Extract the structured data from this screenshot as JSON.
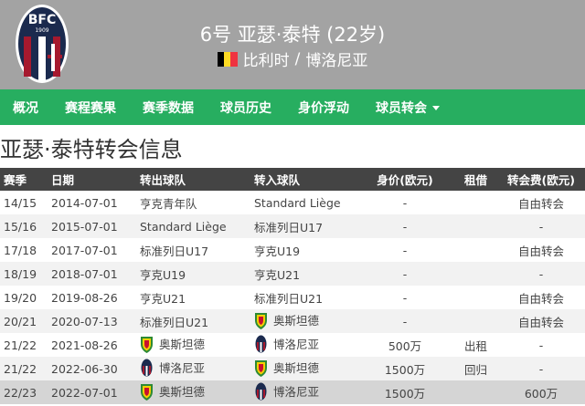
{
  "header": {
    "title": "6号 亚瑟·泰特 (22岁)",
    "nationality": "比利时",
    "club": "博洛尼亚",
    "separator": " / ",
    "logo_text": "BFC",
    "logo_year": "1909"
  },
  "nav": {
    "items": [
      "概况",
      "赛程赛果",
      "赛季数据",
      "球员历史",
      "身价浮动",
      "球员转会"
    ]
  },
  "page_title": "亚瑟·泰特转会信息",
  "table": {
    "headers": [
      "赛季",
      "日期",
      "转出球队",
      "转入球队",
      "身价(欧元)",
      "租借",
      "转会费(欧元)"
    ],
    "rows": [
      {
        "season": "14/15",
        "date": "2014-07-01",
        "from": "亨克青年队",
        "to": "Standard Liège",
        "value": "-",
        "loan": "",
        "fee": "自由转会"
      },
      {
        "season": "15/16",
        "date": "2015-07-01",
        "from": "Standard Liège",
        "to": "标准列日U17",
        "value": "-",
        "loan": "",
        "fee": "-"
      },
      {
        "season": "17/18",
        "date": "2017-07-01",
        "from": "标准列日U17",
        "to": "亨克U19",
        "value": "-",
        "loan": "",
        "fee": "自由转会"
      },
      {
        "season": "18/19",
        "date": "2018-07-01",
        "from": "亨克U19",
        "to": "亨克U21",
        "value": "-",
        "loan": "",
        "fee": "-"
      },
      {
        "season": "19/20",
        "date": "2019-08-26",
        "from": "亨克U21",
        "to": "标准列日U21",
        "value": "-",
        "loan": "",
        "fee": "自由转会"
      },
      {
        "season": "20/21",
        "date": "2020-07-13",
        "from": "标准列日U21",
        "to": "奥斯坦德",
        "to_badge": "ostend",
        "value": "-",
        "loan": "",
        "fee": "自由转会"
      },
      {
        "season": "21/22",
        "date": "2021-08-26",
        "from": "奥斯坦德",
        "from_badge": "ostend",
        "to": "博洛尼亚",
        "to_badge": "bologna",
        "value": "500万",
        "loan": "出租",
        "fee": "-"
      },
      {
        "season": "21/22",
        "date": "2022-06-30",
        "from": "博洛尼亚",
        "from_badge": "bologna",
        "to": "奥斯坦德",
        "to_badge": "ostend",
        "value": "1500万",
        "loan": "回归",
        "fee": "-"
      },
      {
        "season": "22/23",
        "date": "2022-07-01",
        "from": "奥斯坦德",
        "from_badge": "ostend",
        "to": "博洛尼亚",
        "to_badge": "bologna",
        "value": "1500万",
        "loan": "",
        "fee": "600万"
      }
    ]
  }
}
